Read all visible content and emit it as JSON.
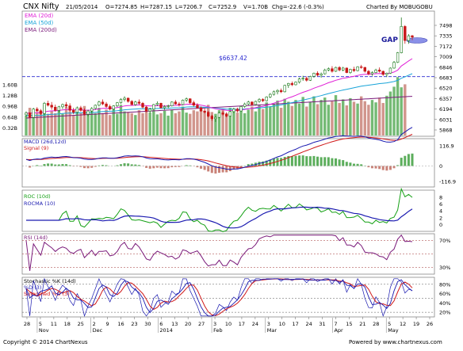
{
  "header": {
    "symbol": "CNX Nifty",
    "date": "21/05/2014",
    "open": "O=7274.85",
    "high": "H=7287.15",
    "low": "L=7206.7",
    "close": "C=7252.9",
    "volume": "V=1.70B",
    "change": "Chg=-22.6 (-0.3%)",
    "charted_by": "Charted By MOBUGOBU"
  },
  "legend": {
    "ema20": "EMA (20d)",
    "ema50": "EMA (50d)",
    "ema200": "EMA (200d)"
  },
  "annotations": {
    "gap": "GAP",
    "level": "$6637.42"
  },
  "footer": {
    "copyright": "Copyright © 2014 ChartNexus",
    "url": "Powered by www.chartnexus.com"
  },
  "colors": {
    "up": "#2e9e2e",
    "down": "#d62020",
    "ema20": "#e01fd6",
    "ema50": "#18a4d8",
    "ema200": "#7a1a7a",
    "level": "#2a2ad0",
    "macd": "#1a1ab0",
    "macd_signal": "#d01818",
    "roc": "#14a014",
    "rocma": "#1a1ab0",
    "rsi": "#7a1a7a",
    "stoch_k": "#1a1ab0",
    "stoch_d": "#1a1ab0",
    "stoch_smooth": "#d01818",
    "volume": "#b07a6a"
  },
  "chart_data": {
    "type": "candlestick-multipanel",
    "price_panel": {
      "ylim": [
        5705,
        7660
      ],
      "y_ticks": [
        "7498",
        "7335",
        "7172",
        "7009",
        "6846",
        "6683",
        "6520",
        "6357",
        "6194",
        "6031",
        "5868"
      ],
      "volume_ticks": [
        "1.60B",
        "1.28B",
        "0.96B",
        "0.64B",
        "0.32B"
      ],
      "volume_max": 2.0,
      "horizontal_level": 6637.42,
      "level_label": "$6637.42",
      "gap_annotation": "GAP",
      "series": [
        {
          "name": "EMA (20d)"
        },
        {
          "name": "EMA (50d)"
        },
        {
          "name": "EMA (200d)"
        }
      ],
      "ohlc": [
        [
          6040,
          6095,
          6010,
          6070
        ],
        [
          6070,
          6080,
          5990,
          6000
        ],
        [
          6000,
          6150,
          5985,
          6130
        ],
        [
          6130,
          6160,
          6090,
          6100
        ],
        [
          6100,
          6130,
          6040,
          6060
        ],
        [
          6060,
          6240,
          6040,
          6220
        ],
        [
          6220,
          6260,
          6170,
          6190
        ],
        [
          6190,
          6240,
          6120,
          6160
        ],
        [
          6160,
          6200,
          6090,
          6110
        ],
        [
          6110,
          6180,
          6080,
          6165
        ],
        [
          6165,
          6215,
          6130,
          6200
        ],
        [
          6200,
          6240,
          6150,
          6180
        ],
        [
          6180,
          6220,
          6090,
          6110
        ],
        [
          6110,
          6150,
          6050,
          6080
        ],
        [
          6080,
          6170,
          6060,
          6150
        ],
        [
          6150,
          6180,
          6090,
          6110
        ],
        [
          6110,
          6140,
          6030,
          6050
        ],
        [
          6050,
          6120,
          6020,
          6100
        ],
        [
          6100,
          6160,
          6070,
          6140
        ],
        [
          6140,
          6200,
          6120,
          6190
        ],
        [
          6190,
          6260,
          6170,
          6240
        ],
        [
          6240,
          6280,
          6190,
          6210
        ],
        [
          6210,
          6240,
          6150,
          6170
        ],
        [
          6170,
          6200,
          6110,
          6130
        ],
        [
          6130,
          6190,
          6110,
          6180
        ],
        [
          6180,
          6240,
          6160,
          6230
        ],
        [
          6230,
          6300,
          6210,
          6280
        ],
        [
          6280,
          6330,
          6250,
          6300
        ],
        [
          6300,
          6310,
          6230,
          6250
        ],
        [
          6250,
          6270,
          6190,
          6200
        ],
        [
          6200,
          6260,
          6180,
          6240
        ],
        [
          6240,
          6280,
          6200,
          6220
        ],
        [
          6220,
          6240,
          6140,
          6160
        ],
        [
          6160,
          6180,
          6080,
          6100
        ],
        [
          6100,
          6150,
          6070,
          6130
        ],
        [
          6130,
          6210,
          6120,
          6200
        ],
        [
          6200,
          6250,
          6180,
          6220
        ],
        [
          6220,
          6230,
          6140,
          6150
        ],
        [
          6150,
          6190,
          6120,
          6170
        ],
        [
          6170,
          6200,
          6140,
          6180
        ],
        [
          6180,
          6250,
          6170,
          6240
        ],
        [
          6240,
          6270,
          6200,
          6210
        ],
        [
          6210,
          6240,
          6170,
          6200
        ],
        [
          6200,
          6280,
          6190,
          6270
        ],
        [
          6270,
          6310,
          6240,
          6290
        ],
        [
          6290,
          6300,
          6210,
          6230
        ],
        [
          6230,
          6260,
          6170,
          6190
        ],
        [
          6190,
          6220,
          6140,
          6150
        ],
        [
          6150,
          6170,
          6090,
          6100
        ],
        [
          6100,
          6140,
          6060,
          6080
        ],
        [
          6080,
          6100,
          6000,
          6020
        ],
        [
          6020,
          6040,
          5950,
          5980
        ],
        [
          5980,
          6020,
          5930,
          6000
        ],
        [
          6000,
          6080,
          5990,
          6070
        ],
        [
          6070,
          6100,
          6030,
          6050
        ],
        [
          6050,
          6080,
          6000,
          6020
        ],
        [
          6020,
          6100,
          6010,
          6090
        ],
        [
          6090,
          6150,
          6070,
          6130
        ],
        [
          6130,
          6150,
          6080,
          6100
        ],
        [
          6100,
          6180,
          6090,
          6170
        ],
        [
          6170,
          6230,
          6150,
          6210
        ],
        [
          6210,
          6260,
          6190,
          6240
        ],
        [
          6240,
          6250,
          6180,
          6200
        ],
        [
          6200,
          6260,
          6190,
          6250
        ],
        [
          6250,
          6300,
          6230,
          6280
        ],
        [
          6280,
          6300,
          6240,
          6260
        ],
        [
          6260,
          6330,
          6250,
          6320
        ],
        [
          6320,
          6380,
          6300,
          6360
        ],
        [
          6360,
          6420,
          6340,
          6400
        ],
        [
          6400,
          6440,
          6360,
          6420
        ],
        [
          6420,
          6450,
          6380,
          6400
        ],
        [
          6400,
          6510,
          6390,
          6500
        ],
        [
          6500,
          6540,
          6460,
          6530
        ],
        [
          6530,
          6560,
          6490,
          6510
        ],
        [
          6510,
          6560,
          6500,
          6550
        ],
        [
          6550,
          6620,
          6530,
          6600
        ],
        [
          6600,
          6650,
          6570,
          6610
        ],
        [
          6610,
          6640,
          6560,
          6580
        ],
        [
          6580,
          6650,
          6570,
          6640
        ],
        [
          6640,
          6700,
          6620,
          6690
        ],
        [
          6690,
          6720,
          6640,
          6660
        ],
        [
          6660,
          6700,
          6620,
          6680
        ],
        [
          6680,
          6760,
          6670,
          6740
        ],
        [
          6740,
          6780,
          6720,
          6760
        ],
        [
          6760,
          6800,
          6700,
          6720
        ],
        [
          6720,
          6790,
          6710,
          6780
        ],
        [
          6780,
          6800,
          6720,
          6740
        ],
        [
          6740,
          6790,
          6720,
          6770
        ],
        [
          6770,
          6780,
          6690,
          6700
        ],
        [
          6700,
          6760,
          6680,
          6750
        ],
        [
          6750,
          6790,
          6710,
          6730
        ],
        [
          6730,
          6800,
          6720,
          6790
        ],
        [
          6790,
          6820,
          6760,
          6780
        ],
        [
          6780,
          6790,
          6700,
          6720
        ],
        [
          6720,
          6740,
          6660,
          6680
        ],
        [
          6680,
          6720,
          6650,
          6700
        ],
        [
          6700,
          6760,
          6690,
          6740
        ],
        [
          6740,
          6780,
          6700,
          6720
        ],
        [
          6720,
          6730,
          6650,
          6670
        ],
        [
          6670,
          6700,
          6630,
          6690
        ],
        [
          6690,
          6780,
          6680,
          6770
        ],
        [
          6770,
          6880,
          6760,
          6860
        ],
        [
          6860,
          7020,
          6850,
          7010
        ],
        [
          7010,
          7560,
          7000,
          7420
        ],
        [
          7420,
          7440,
          7150,
          7200
        ],
        [
          7200,
          7300,
          7150,
          7275
        ],
        [
          7274.85,
          7287.15,
          7206.7,
          7252.9
        ]
      ],
      "volume": [
        0.66,
        0.92,
        0.72,
        0.78,
        0.84,
        1.02,
        0.72,
        0.82,
        0.74,
        0.88,
        0.72,
        0.96,
        0.8,
        0.68,
        0.9,
        0.74,
        0.98,
        0.78,
        0.86,
        0.74,
        0.92,
        0.74,
        0.86,
        0.68,
        0.88,
        0.72,
        1.02,
        0.8,
        0.78,
        0.74,
        0.68,
        0.84,
        0.74,
        0.96,
        0.76,
        0.86,
        0.7,
        0.74,
        0.82,
        0.66,
        0.86,
        0.74,
        0.8,
        0.96,
        0.76,
        0.72,
        0.84,
        0.8,
        0.88,
        0.76,
        1.02,
        0.78,
        0.72,
        0.84,
        0.88,
        0.74,
        0.92,
        0.82,
        0.76,
        0.98,
        0.74,
        0.86,
        0.96,
        0.8,
        1.02,
        0.88,
        1.1,
        0.96,
        1.04,
        1.16,
        0.92,
        1.22,
        1.12,
        0.98,
        1.18,
        1.06,
        1.28,
        0.96,
        1.12,
        1.3,
        1.04,
        1.18,
        1.26,
        1.02,
        1.14,
        1.34,
        1.08,
        1.2,
        1.0,
        1.24,
        1.12,
        1.06,
        1.3,
        1.14,
        1.02,
        1.18,
        1.1,
        1.26,
        1.08,
        1.32,
        1.46,
        1.62,
        1.94,
        1.6,
        1.7
      ]
    },
    "macd_panel": {
      "label": "MACD (26d,12d)",
      "signal_label": "Signal (9)",
      "ylim": [
        -170,
        170
      ],
      "y_ticks": [
        "116.9",
        "0",
        "-116.9"
      ]
    },
    "roc_panel": {
      "label": "ROC (10d)",
      "ma_label": "ROCMA (10)",
      "ylim": [
        -7,
        10
      ],
      "y_ticks": [
        "8",
        "6",
        "4",
        "2",
        "0"
      ]
    },
    "rsi_panel": {
      "label": "RSI (14d)",
      "ylim": [
        20,
        80
      ],
      "y_ticks": [
        "70%",
        "30%"
      ],
      "levels": [
        70,
        50,
        30
      ]
    },
    "stoch_panel": {
      "label": "Stochastic %K (14d)",
      "d_label": "%D (3)",
      "smooth_label": "Smoothed %D (3)",
      "ylim": [
        10,
        95
      ],
      "y_ticks": [
        "80%",
        "60%",
        "40%",
        "20%"
      ],
      "levels": [
        80,
        50,
        20
      ]
    },
    "x_axis": {
      "day_ticks": [
        "28",
        "5",
        "11",
        "18",
        "25",
        "2",
        "9",
        "16",
        "23",
        "30",
        "6",
        "13",
        "20",
        "27",
        "3",
        "10",
        "17",
        "24",
        "3",
        "10",
        "17",
        "24",
        "31",
        "7",
        "15",
        "21",
        "28",
        "5",
        "12",
        "19",
        "26"
      ],
      "month_labels": [
        "Nov",
        "Dec",
        "2014",
        "Feb",
        "Mar",
        "Apr",
        "May"
      ]
    }
  }
}
